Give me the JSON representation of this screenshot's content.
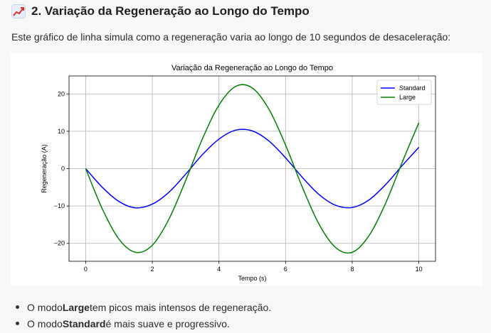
{
  "section": {
    "title": "2. Variação da Regeneração ao Longo do Tempo",
    "icon": "chart-increasing-icon",
    "intro": "Este gráfico de linha simula como a regeneração varia ao longo de 10 segundos de desaceleração:"
  },
  "chart_data": {
    "type": "line",
    "title": "Variação da Regeneração ao Longo do Tempo",
    "xlabel": "Tempo (s)",
    "ylabel": "Regeneração (A)",
    "xlim": [
      -0.5,
      10.5
    ],
    "ylim": [
      -24.8,
      24.8
    ],
    "xticks": [
      0,
      2,
      4,
      6,
      8,
      10
    ],
    "yticks": [
      -20,
      -10,
      0,
      10,
      20
    ],
    "grid": true,
    "legend_position": "top-right",
    "x": [
      0,
      0.5,
      1,
      1.5,
      2,
      2.5,
      3,
      3.5,
      4,
      4.5,
      5,
      5.5,
      6,
      6.5,
      7,
      7.5,
      8,
      8.5,
      9,
      9.5,
      10
    ],
    "series": [
      {
        "name": "Standard",
        "color": "#0000ff",
        "values": [
          0,
          -5.0,
          -8.8,
          -10.5,
          -9.5,
          -6.3,
          -1.5,
          3.7,
          7.9,
          10.3,
          10.1,
          7.4,
          2.9,
          -2.3,
          -6.9,
          -9.8,
          -10.4,
          -8.4,
          -4.3,
          0.8,
          5.7
        ]
      },
      {
        "name": "Large",
        "color": "#008000",
        "values": [
          0,
          -10.8,
          -18.9,
          -22.4,
          -20.5,
          -13.5,
          -3.2,
          7.9,
          17.0,
          22.0,
          21.6,
          15.9,
          6.3,
          -4.9,
          -14.8,
          -21.1,
          -22.4,
          -18.0,
          -9.3,
          1.7,
          12.3
        ]
      }
    ]
  },
  "bullets": [
    {
      "prefix": "O modo ",
      "bold": "Large",
      "suffix": " tem picos mais intensos de regeneração."
    },
    {
      "prefix": "O modo ",
      "bold": "Standard",
      "suffix": " é mais suave e progressivo."
    }
  ]
}
